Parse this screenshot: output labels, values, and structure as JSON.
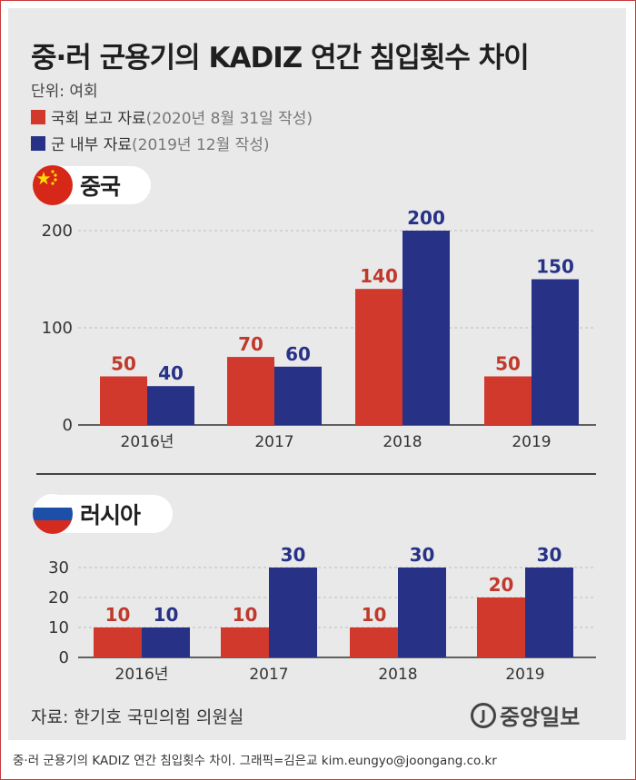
{
  "title": "중·러 군용기의 KADIZ 연간 침입횟수 차이",
  "unit": "단위: 여회",
  "legend": [
    {
      "label": "국회 보고 자료",
      "note": "(2020년 8월 31일 작성)",
      "color": "#d0392c"
    },
    {
      "label": "군 내부 자료",
      "note": "(2019년 12월 작성)",
      "color": "#273287"
    }
  ],
  "colors": {
    "red": "#d0392c",
    "blue": "#273287",
    "red_label": "#c0392b",
    "blue_label": "#273287"
  },
  "icons": {
    "china_flag": "china-flag-icon",
    "russia_flag": "russia-flag-icon",
    "brand_logo": "joongang-logo-icon"
  },
  "chart_data": [
    {
      "type": "bar",
      "title": "중국",
      "categories": [
        "2016년",
        "2017",
        "2018",
        "2019"
      ],
      "series": [
        {
          "name": "국회 보고 자료",
          "values": [
            50,
            70,
            140,
            50
          ]
        },
        {
          "name": "군 내부 자료",
          "values": [
            40,
            60,
            200,
            150
          ]
        }
      ],
      "ylim": [
        0,
        200
      ],
      "yticks": [
        "0",
        "100",
        "200"
      ],
      "grid": true
    },
    {
      "type": "bar",
      "title": "러시아",
      "categories": [
        "2016년",
        "2017",
        "2018",
        "2019"
      ],
      "series": [
        {
          "name": "국회 보고 자료",
          "values": [
            10,
            10,
            10,
            20
          ]
        },
        {
          "name": "군 내부 자료",
          "values": [
            10,
            30,
            30,
            30
          ]
        }
      ],
      "ylim": [
        0,
        30
      ],
      "yticks": [
        "0",
        "10",
        "20",
        "30"
      ],
      "grid": true
    }
  ],
  "source": "자료: 한기호 국민의힘 의원실",
  "brand": "중앙일보",
  "caption": "중·러 군용기의 KADIZ 연간 침입횟수 차이. 그래픽=김은교 kim.eungyo@joongang.co.kr"
}
